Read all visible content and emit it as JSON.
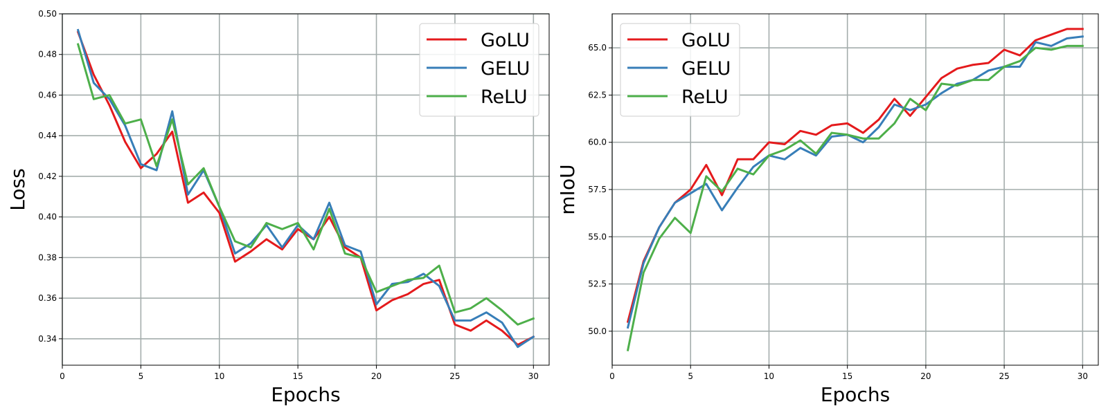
{
  "chart_data": [
    {
      "type": "line",
      "title": "",
      "xlabel": "Epochs",
      "ylabel": "Loss",
      "xlim": [
        0,
        31
      ],
      "ylim": [
        0.327,
        0.5
      ],
      "xticks": [
        0,
        5,
        10,
        15,
        20,
        25,
        30
      ],
      "yticks": [
        0.34,
        0.36,
        0.38,
        0.4,
        0.42,
        0.44,
        0.46,
        0.48,
        0.5
      ],
      "ytick_labels": [
        "0.34",
        "0.36",
        "0.38",
        "0.40",
        "0.42",
        "0.44",
        "0.46",
        "0.48",
        "0.50"
      ],
      "grid": true,
      "legend_position": "top-right",
      "x": [
        1,
        2,
        3,
        4,
        5,
        6,
        7,
        8,
        9,
        10,
        11,
        12,
        13,
        14,
        15,
        16,
        17,
        18,
        19,
        20,
        21,
        22,
        23,
        24,
        25,
        26,
        27,
        28,
        29,
        30
      ],
      "series": [
        {
          "name": "GoLU",
          "color": "#e41a1c",
          "values": [
            0.491,
            0.47,
            0.455,
            0.437,
            0.424,
            0.431,
            0.442,
            0.407,
            0.412,
            0.402,
            0.378,
            0.383,
            0.389,
            0.384,
            0.394,
            0.389,
            0.4,
            0.385,
            0.38,
            0.354,
            0.359,
            0.362,
            0.367,
            0.369,
            0.347,
            0.344,
            0.349,
            0.344,
            0.337,
            0.341
          ]
        },
        {
          "name": "GELU",
          "color": "#377eb8",
          "values": [
            0.492,
            0.466,
            0.458,
            0.445,
            0.426,
            0.423,
            0.452,
            0.411,
            0.423,
            0.405,
            0.382,
            0.387,
            0.396,
            0.385,
            0.396,
            0.389,
            0.407,
            0.386,
            0.383,
            0.357,
            0.367,
            0.368,
            0.372,
            0.366,
            0.349,
            0.349,
            0.353,
            0.348,
            0.336,
            0.341
          ]
        },
        {
          "name": "ReLU",
          "color": "#4daf4a",
          "values": [
            0.485,
            0.458,
            0.46,
            0.446,
            0.448,
            0.425,
            0.448,
            0.416,
            0.424,
            0.405,
            0.388,
            0.385,
            0.397,
            0.394,
            0.397,
            0.384,
            0.404,
            0.382,
            0.38,
            0.363,
            0.366,
            0.369,
            0.37,
            0.376,
            0.353,
            0.355,
            0.36,
            0.354,
            0.347,
            0.35
          ]
        }
      ]
    },
    {
      "type": "line",
      "title": "",
      "xlabel": "Epochs",
      "ylabel": "mIoU",
      "xlim": [
        0,
        31
      ],
      "ylim": [
        48.2,
        66.8
      ],
      "xticks": [
        0,
        5,
        10,
        15,
        20,
        25,
        30
      ],
      "yticks": [
        50.0,
        52.5,
        55.0,
        57.5,
        60.0,
        62.5,
        65.0
      ],
      "ytick_labels": [
        "50.0",
        "52.5",
        "55.0",
        "57.5",
        "60.0",
        "62.5",
        "65.0"
      ],
      "grid": true,
      "legend_position": "top-left",
      "x": [
        1,
        2,
        3,
        4,
        5,
        6,
        7,
        8,
        9,
        10,
        11,
        12,
        13,
        14,
        15,
        16,
        17,
        18,
        19,
        20,
        21,
        22,
        23,
        24,
        25,
        26,
        27,
        28,
        29,
        30
      ],
      "series": [
        {
          "name": "GoLU",
          "color": "#e41a1c",
          "values": [
            50.5,
            53.7,
            55.5,
            56.8,
            57.5,
            58.8,
            57.2,
            59.1,
            59.1,
            60.0,
            59.9,
            60.6,
            60.4,
            60.9,
            61.0,
            60.5,
            61.2,
            62.3,
            61.4,
            62.4,
            63.4,
            63.9,
            64.1,
            64.2,
            64.9,
            64.6,
            65.4,
            65.7,
            66.0,
            66.0
          ]
        },
        {
          "name": "GELU",
          "color": "#377eb8",
          "values": [
            50.2,
            53.6,
            55.5,
            56.8,
            57.3,
            57.8,
            56.4,
            57.6,
            58.7,
            59.3,
            59.1,
            59.7,
            59.3,
            60.3,
            60.4,
            60.0,
            60.8,
            62.0,
            61.7,
            62.0,
            62.6,
            63.1,
            63.3,
            63.8,
            64.0,
            64.0,
            65.3,
            65.1,
            65.5,
            65.6
          ]
        },
        {
          "name": "ReLU",
          "color": "#4daf4a",
          "values": [
            49.0,
            53.1,
            54.9,
            56.0,
            55.2,
            58.2,
            57.4,
            58.6,
            58.3,
            59.3,
            59.6,
            60.1,
            59.4,
            60.5,
            60.4,
            60.2,
            60.2,
            61.0,
            62.3,
            61.7,
            63.1,
            63.0,
            63.3,
            63.3,
            64.0,
            64.3,
            65.0,
            64.9,
            65.1,
            65.1
          ]
        }
      ]
    }
  ]
}
